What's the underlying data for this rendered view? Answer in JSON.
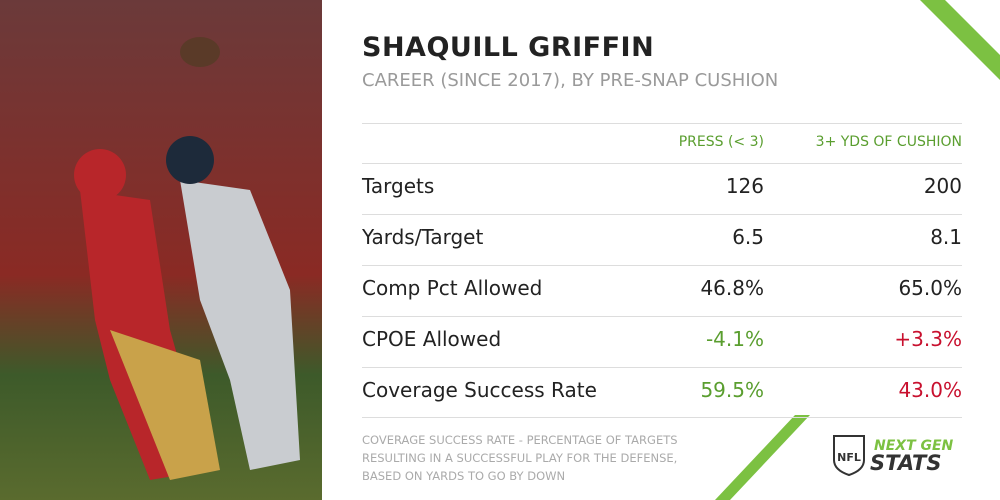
{
  "header": {
    "title": "SHAQUILL GRIFFIN",
    "subtitle": "CAREER (SINCE 2017), BY PRE-SNAP CUSHION"
  },
  "table": {
    "columns": [
      "PRESS (< 3)",
      "3+ YDS OF CUSHION"
    ],
    "rows": [
      [
        "Targets",
        "126",
        "200"
      ],
      [
        "Yards/Target",
        "6.5",
        "8.1"
      ],
      [
        "Comp Pct Allowed",
        "46.8%",
        "65.0%"
      ],
      [
        "CPOE Allowed",
        "-4.1%",
        "+3.3%"
      ],
      [
        "Coverage Success Rate",
        "59.5%",
        "43.0%"
      ]
    ]
  },
  "footnote": [
    "COVERAGE SUCCESS RATE - PERCENTAGE OF TARGETS",
    "RESULTING IN A SUCCESSFUL PLAY FOR THE DEFENSE,",
    "BASED ON YARDS TO GO BY DOWN"
  ],
  "logo": {
    "nfl": "NFL",
    "line1": "NEXT GEN",
    "line2": "STATS"
  }
}
